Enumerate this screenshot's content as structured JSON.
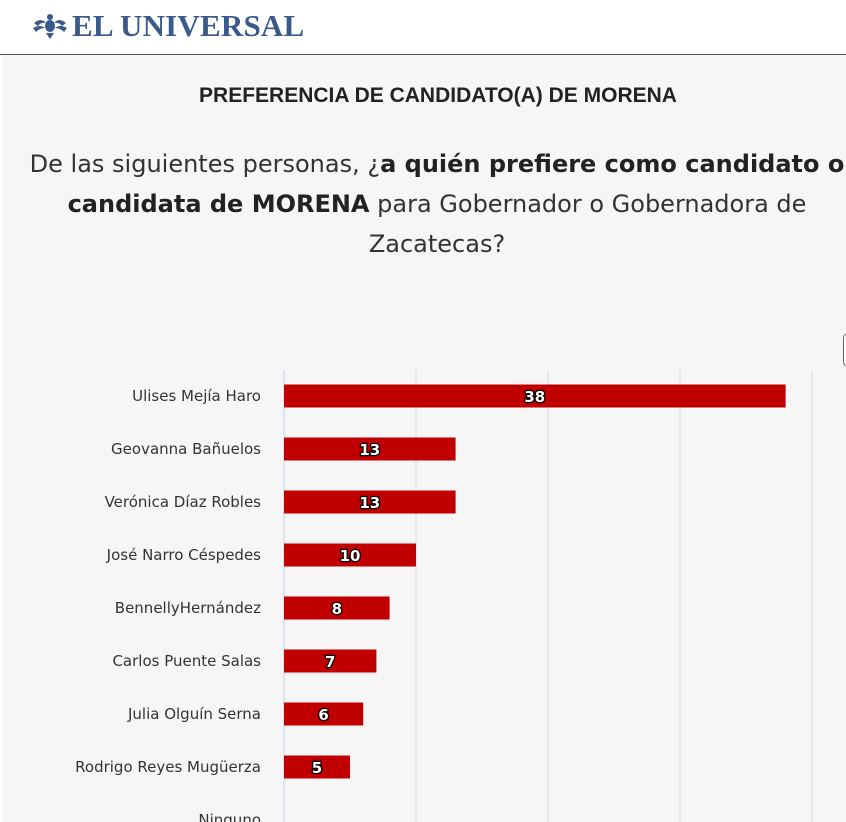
{
  "masthead": {
    "logo_text": "EL UNIVERSAL",
    "logo_icon": "eagle-emblem-icon",
    "brand_color": "#3a5a8c"
  },
  "chart_data": {
    "type": "bar",
    "orientation": "horizontal",
    "title": "PREFERENCIA DE CANDIDATO(A) DE MORENA",
    "subtitle_parts": {
      "prefix": "De las siguientes personas, ¿",
      "bold": "a quién prefiere como candidato o candidata de MORENA",
      "suffix": " para Gobernador o Gobernadora de Zacatecas?"
    },
    "categories": [
      "Ulises Mejía Haro",
      "Geovanna Bañuelos",
      "Verónica Díaz Robles",
      "José Narro Céspedes",
      "BennellyHernández",
      "Carlos Puente Salas",
      "Julia Olguín Serna",
      "Rodrigo Reyes Mugüerza",
      "Ninguno"
    ],
    "values": [
      38,
      13,
      13,
      10,
      8,
      7,
      6,
      5,
      null
    ],
    "xlim": [
      0,
      40
    ],
    "grid": true,
    "data_labels": true,
    "bar_color": "#c00000"
  }
}
